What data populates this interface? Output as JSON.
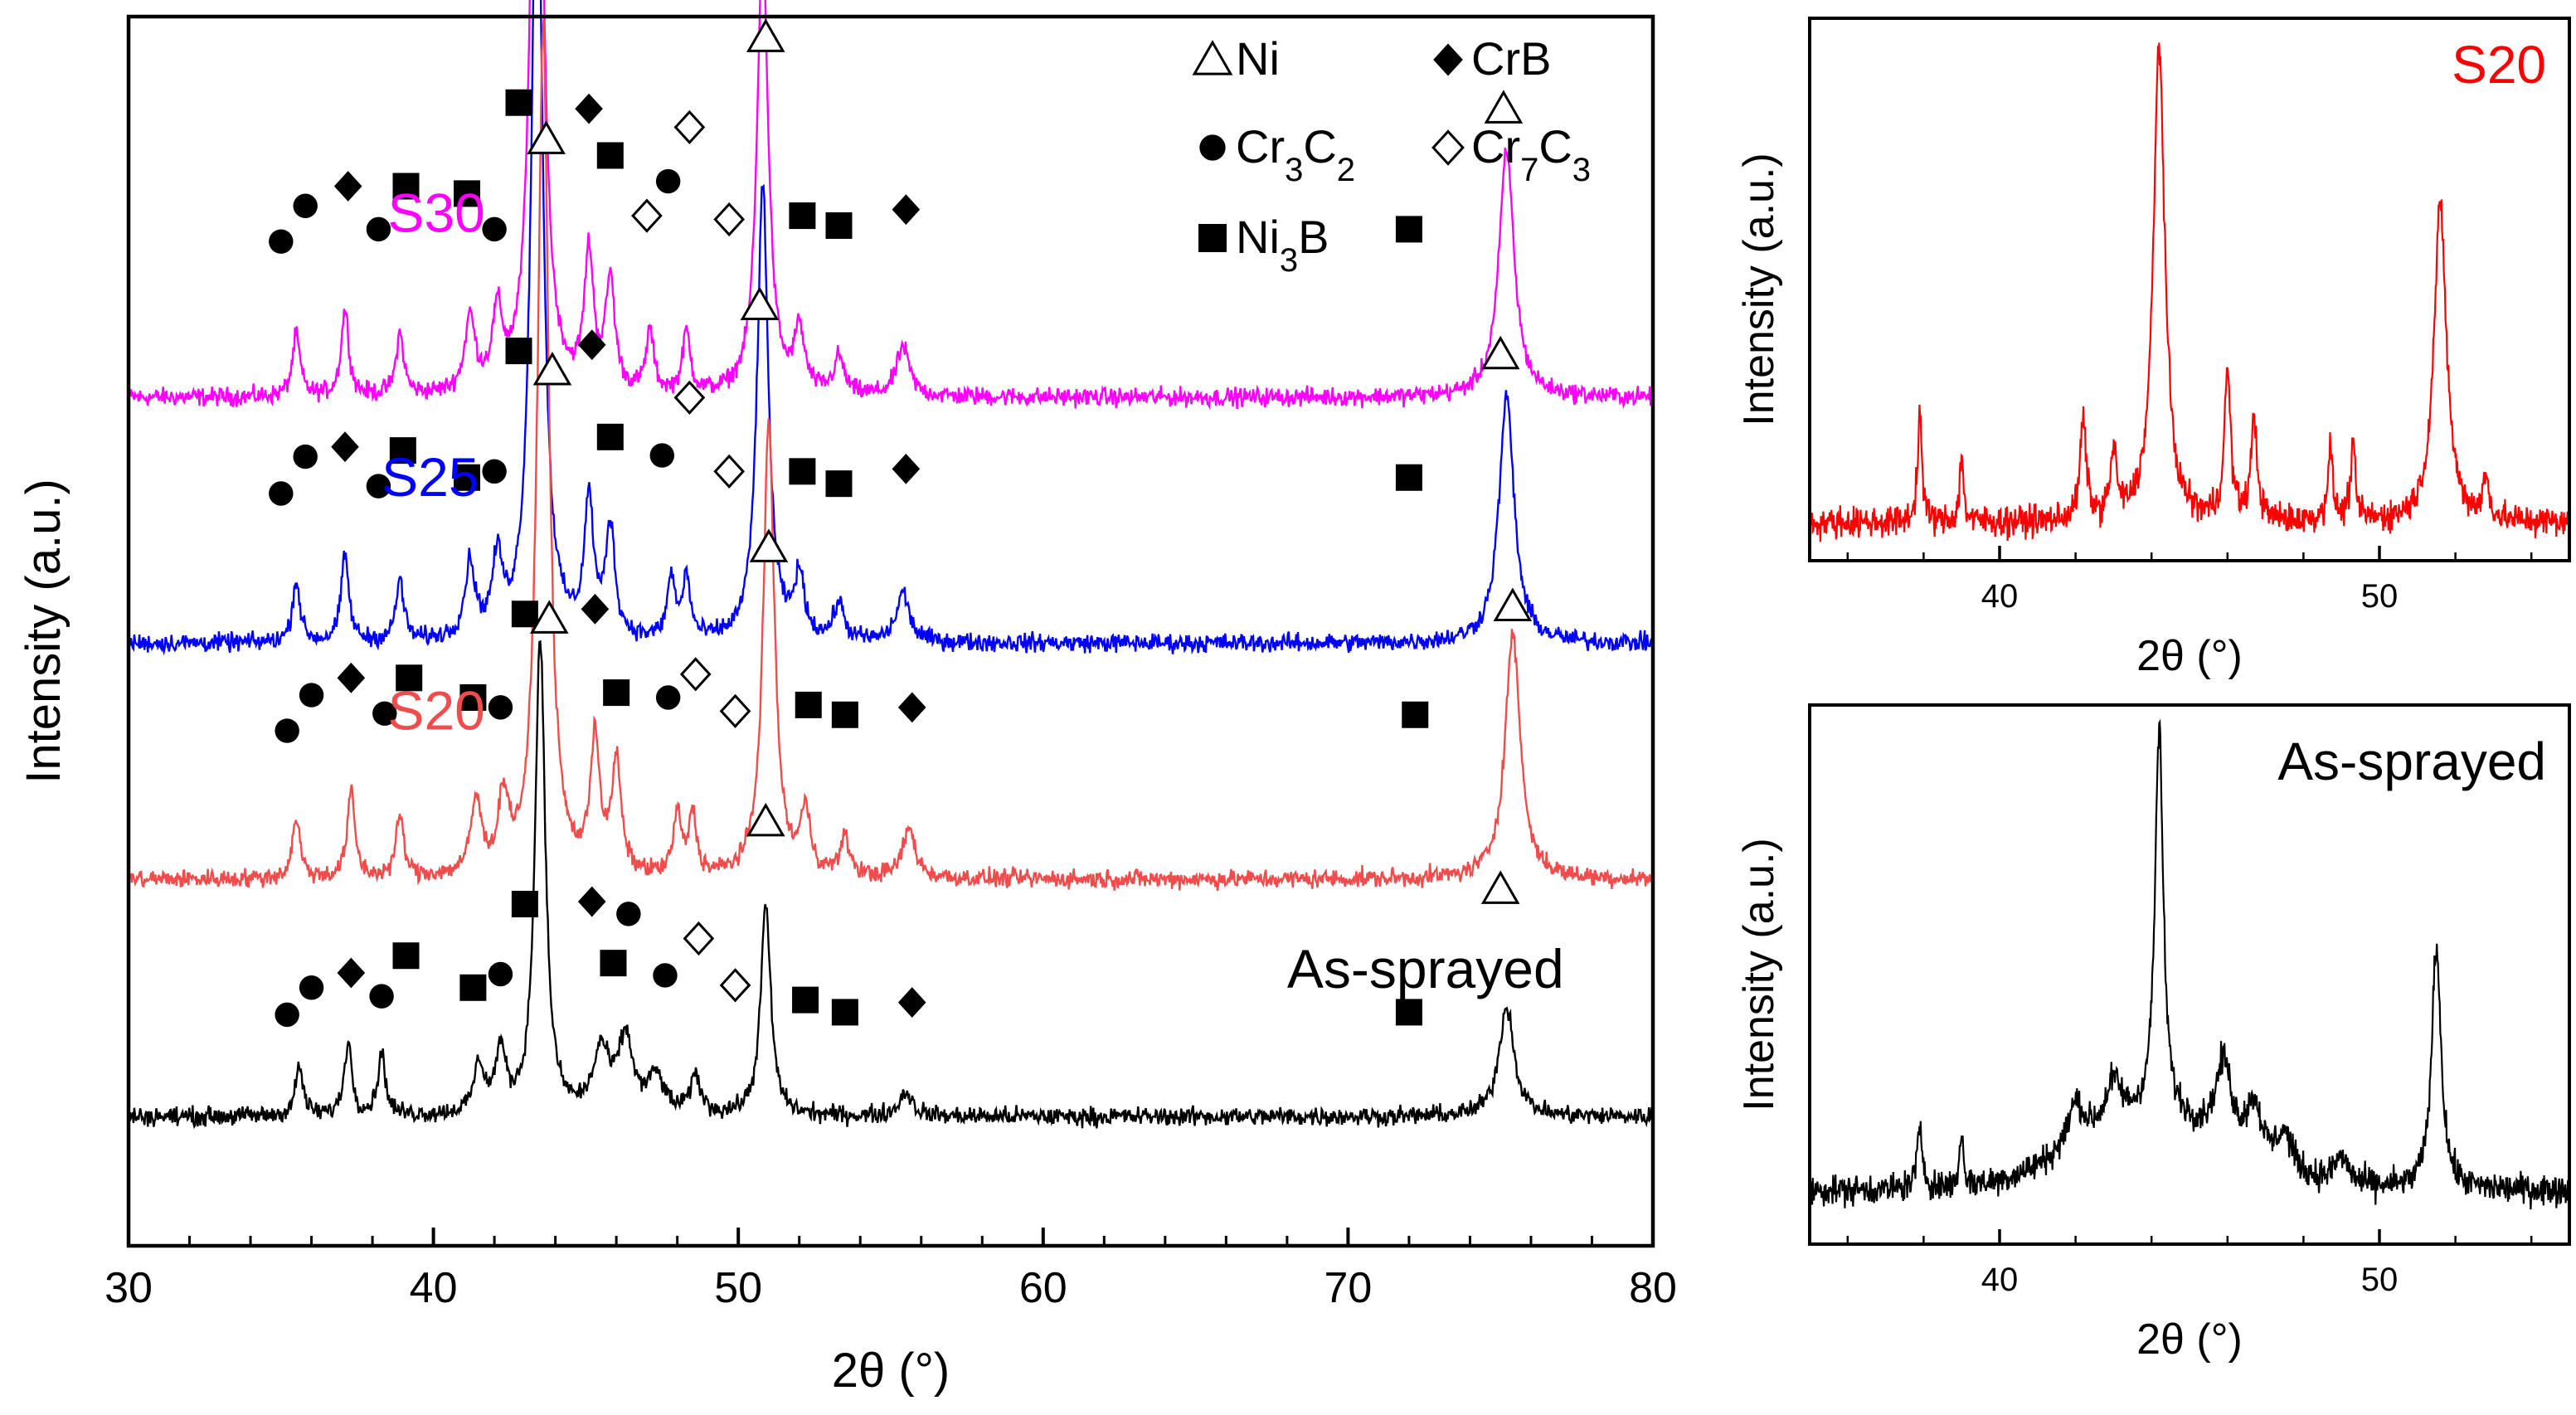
{
  "chart_data": [
    {
      "type": "line",
      "title": "",
      "xlabel": "2θ (°)",
      "ylabel": "Intensity (a.u.)",
      "xlim": [
        30,
        80
      ],
      "xticks": [
        "30",
        "40",
        "50",
        "60",
        "70",
        "80"
      ],
      "grid": false,
      "legend": {
        "position": "top-right",
        "entries": [
          {
            "symbol": "triangle-open",
            "label": "Ni"
          },
          {
            "symbol": "diamond-filled",
            "label": "CrB"
          },
          {
            "symbol": "circle-filled",
            "label": "Cr",
            "sub1": "3",
            "mid": "C",
            "sub2": "2"
          },
          {
            "symbol": "diamond-open",
            "label": "Cr",
            "sub1": "7",
            "mid": "C",
            "sub2": "3"
          },
          {
            "symbol": "square-filled",
            "label": "Ni",
            "sub1": "3",
            "mid": "B",
            "sub2": ""
          }
        ]
      },
      "series": [
        {
          "name": "S30",
          "color": "#ff00ff",
          "baseline": 0.69,
          "label_pos": [
            38.5,
            0.825
          ],
          "peaks": [
            [
              35.5,
              0.05,
              0.15
            ],
            [
              37.1,
              0.07,
              0.15
            ],
            [
              38.9,
              0.05,
              0.15
            ],
            [
              41.2,
              0.06,
              0.2
            ],
            [
              42.1,
              0.06,
              0.2
            ],
            [
              43.4,
              0.69,
              0.22
            ],
            [
              45.1,
              0.11,
              0.18
            ],
            [
              45.8,
              0.09,
              0.18
            ],
            [
              47.1,
              0.05,
              0.15
            ],
            [
              48.3,
              0.05,
              0.15
            ],
            [
              50.8,
              0.37,
              0.22
            ],
            [
              52.0,
              0.05,
              0.2
            ],
            [
              53.3,
              0.03,
              0.2
            ],
            [
              55.4,
              0.04,
              0.25
            ],
            [
              75.2,
              0.2,
              0.3
            ]
          ],
          "markers": [
            {
              "s": "circle-filled",
              "x": 35.0,
              "y": 0.817
            },
            {
              "s": "circle-filled",
              "x": 35.8,
              "y": 0.846
            },
            {
              "s": "diamond-filled",
              "x": 37.2,
              "y": 0.862
            },
            {
              "s": "circle-filled",
              "x": 38.2,
              "y": 0.827
            },
            {
              "s": "square-filled",
              "x": 39.1,
              "y": 0.862
            },
            {
              "s": "square-filled",
              "x": 41.1,
              "y": 0.856
            },
            {
              "s": "circle-filled",
              "x": 42.0,
              "y": 0.827
            },
            {
              "s": "square-filled",
              "x": 42.8,
              "y": 0.93
            },
            {
              "s": "diamond-filled",
              "x": 45.1,
              "y": 0.925
            },
            {
              "s": "square-filled",
              "x": 45.8,
              "y": 0.887
            },
            {
              "s": "diamond-open",
              "x": 47.0,
              "y": 0.838
            },
            {
              "s": "circle-filled",
              "x": 47.7,
              "y": 0.866
            },
            {
              "s": "diamond-open",
              "x": 48.4,
              "y": 0.91
            },
            {
              "s": "diamond-open",
              "x": 49.7,
              "y": 0.835
            },
            {
              "s": "square-filled",
              "x": 52.1,
              "y": 0.838
            },
            {
              "s": "square-filled",
              "x": 53.3,
              "y": 0.83
            },
            {
              "s": "diamond-filled",
              "x": 55.5,
              "y": 0.843
            },
            {
              "s": "square-filled",
              "x": 72.0,
              "y": 0.827
            },
            {
              "s": "triangle-open",
              "x": 43.7,
              "y": 1.112
            },
            {
              "s": "triangle-open",
              "x": 50.9,
              "y": 0.983
            },
            {
              "s": "triangle-open",
              "x": 75.1,
              "y": 0.925
            }
          ]
        },
        {
          "name": "S25",
          "color": "#0000ff",
          "baseline": 0.49,
          "label_pos": [
            38.3,
            0.61
          ],
          "peaks": [
            [
              35.5,
              0.05,
              0.15
            ],
            [
              37.1,
              0.07,
              0.15
            ],
            [
              38.9,
              0.05,
              0.15
            ],
            [
              41.2,
              0.06,
              0.2
            ],
            [
              42.1,
              0.06,
              0.2
            ],
            [
              43.4,
              0.69,
              0.22
            ],
            [
              45.1,
              0.11,
              0.18
            ],
            [
              45.8,
              0.09,
              0.18
            ],
            [
              47.8,
              0.05,
              0.15
            ],
            [
              48.3,
              0.05,
              0.15
            ],
            [
              50.8,
              0.37,
              0.22
            ],
            [
              52.0,
              0.05,
              0.2
            ],
            [
              53.3,
              0.03,
              0.2
            ],
            [
              55.4,
              0.04,
              0.25
            ],
            [
              75.2,
              0.2,
              0.3
            ]
          ],
          "markers": [
            {
              "s": "circle-filled",
              "x": 35.0,
              "y": 0.612
            },
            {
              "s": "circle-filled",
              "x": 35.8,
              "y": 0.642
            },
            {
              "s": "diamond-filled",
              "x": 37.1,
              "y": 0.65
            },
            {
              "s": "circle-filled",
              "x": 38.2,
              "y": 0.618
            },
            {
              "s": "square-filled",
              "x": 39.0,
              "y": 0.647
            },
            {
              "s": "square-filled",
              "x": 41.1,
              "y": 0.625
            },
            {
              "s": "circle-filled",
              "x": 42.0,
              "y": 0.63
            },
            {
              "s": "square-filled",
              "x": 42.8,
              "y": 0.728
            },
            {
              "s": "diamond-filled",
              "x": 45.2,
              "y": 0.733
            },
            {
              "s": "square-filled",
              "x": 45.8,
              "y": 0.658
            },
            {
              "s": "circle-filled",
              "x": 47.5,
              "y": 0.643
            },
            {
              "s": "diamond-open",
              "x": 48.4,
              "y": 0.69
            },
            {
              "s": "diamond-open",
              "x": 49.7,
              "y": 0.63
            },
            {
              "s": "square-filled",
              "x": 52.1,
              "y": 0.63
            },
            {
              "s": "square-filled",
              "x": 53.3,
              "y": 0.62
            },
            {
              "s": "diamond-filled",
              "x": 55.5,
              "y": 0.632
            },
            {
              "s": "square-filled",
              "x": 72.0,
              "y": 0.625
            },
            {
              "s": "triangle-open",
              "x": 43.7,
              "y": 0.9
            },
            {
              "s": "triangle-open",
              "x": 50.7,
              "y": 0.765
            },
            {
              "s": "triangle-open",
              "x": 75.0,
              "y": 0.725
            }
          ]
        },
        {
          "name": "S20",
          "color": "#f04c4c",
          "baseline": 0.298,
          "label_pos": [
            38.5,
            0.42
          ],
          "peaks": [
            [
              35.5,
              0.05,
              0.15
            ],
            [
              37.3,
              0.07,
              0.15
            ],
            [
              38.9,
              0.05,
              0.15
            ],
            [
              41.4,
              0.06,
              0.2
            ],
            [
              42.3,
              0.06,
              0.2
            ],
            [
              43.6,
              0.69,
              0.22
            ],
            [
              45.3,
              0.11,
              0.18
            ],
            [
              46.0,
              0.09,
              0.18
            ],
            [
              48.0,
              0.05,
              0.15
            ],
            [
              48.5,
              0.05,
              0.15
            ],
            [
              51.0,
              0.37,
              0.22
            ],
            [
              52.2,
              0.05,
              0.2
            ],
            [
              53.5,
              0.03,
              0.2
            ],
            [
              55.6,
              0.04,
              0.25
            ],
            [
              75.4,
              0.2,
              0.3
            ]
          ],
          "markers": [
            {
              "s": "circle-filled",
              "x": 35.2,
              "y": 0.419
            },
            {
              "s": "circle-filled",
              "x": 36.0,
              "y": 0.448
            },
            {
              "s": "diamond-filled",
              "x": 37.3,
              "y": 0.462
            },
            {
              "s": "circle-filled",
              "x": 38.4,
              "y": 0.433
            },
            {
              "s": "square-filled",
              "x": 39.2,
              "y": 0.462
            },
            {
              "s": "square-filled",
              "x": 41.3,
              "y": 0.446
            },
            {
              "s": "circle-filled",
              "x": 42.2,
              "y": 0.438
            },
            {
              "s": "square-filled",
              "x": 43.0,
              "y": 0.514
            },
            {
              "s": "diamond-filled",
              "x": 45.3,
              "y": 0.518
            },
            {
              "s": "square-filled",
              "x": 46.0,
              "y": 0.45
            },
            {
              "s": "circle-filled",
              "x": 47.7,
              "y": 0.446
            },
            {
              "s": "diamond-open",
              "x": 48.6,
              "y": 0.465
            },
            {
              "s": "diamond-open",
              "x": 49.9,
              "y": 0.435
            },
            {
              "s": "square-filled",
              "x": 52.3,
              "y": 0.44
            },
            {
              "s": "square-filled",
              "x": 53.5,
              "y": 0.432
            },
            {
              "s": "diamond-filled",
              "x": 55.7,
              "y": 0.438
            },
            {
              "s": "square-filled",
              "x": 72.2,
              "y": 0.432
            },
            {
              "s": "triangle-open",
              "x": 43.9,
              "y": 0.712
            },
            {
              "s": "triangle-open",
              "x": 51.0,
              "y": 0.568
            },
            {
              "s": "triangle-open",
              "x": 75.4,
              "y": 0.52
            }
          ]
        },
        {
          "name": "As-sprayed",
          "color": "#000000",
          "baseline": 0.105,
          "label_pos": [
            68.0,
            0.21
          ],
          "peaks": [
            [
              35.6,
              0.04,
              0.15
            ],
            [
              37.2,
              0.06,
              0.15
            ],
            [
              38.3,
              0.05,
              0.15
            ],
            [
              41.5,
              0.04,
              0.2
            ],
            [
              42.2,
              0.05,
              0.2
            ],
            [
              43.5,
              0.39,
              0.2
            ],
            [
              45.5,
              0.05,
              0.3
            ],
            [
              46.3,
              0.06,
              0.3
            ],
            [
              47.3,
              0.03,
              0.3
            ],
            [
              48.6,
              0.03,
              0.2
            ],
            [
              50.9,
              0.17,
              0.2
            ],
            [
              55.5,
              0.02,
              0.25
            ],
            [
              75.2,
              0.09,
              0.3
            ]
          ],
          "markers": [
            {
              "s": "circle-filled",
              "x": 35.2,
              "y": 0.188
            },
            {
              "s": "circle-filled",
              "x": 36.0,
              "y": 0.21
            },
            {
              "s": "diamond-filled",
              "x": 37.3,
              "y": 0.222
            },
            {
              "s": "circle-filled",
              "x": 38.3,
              "y": 0.203
            },
            {
              "s": "square-filled",
              "x": 39.1,
              "y": 0.236
            },
            {
              "s": "square-filled",
              "x": 41.3,
              "y": 0.21
            },
            {
              "s": "circle-filled",
              "x": 42.2,
              "y": 0.221
            },
            {
              "s": "square-filled",
              "x": 43.0,
              "y": 0.278
            },
            {
              "s": "diamond-filled",
              "x": 45.2,
              "y": 0.28
            },
            {
              "s": "circle-filled",
              "x": 46.4,
              "y": 0.27
            },
            {
              "s": "square-filled",
              "x": 45.9,
              "y": 0.23
            },
            {
              "s": "circle-filled",
              "x": 47.6,
              "y": 0.22
            },
            {
              "s": "diamond-open",
              "x": 48.7,
              "y": 0.25
            },
            {
              "s": "diamond-open",
              "x": 49.9,
              "y": 0.212
            },
            {
              "s": "square-filled",
              "x": 52.2,
              "y": 0.2
            },
            {
              "s": "square-filled",
              "x": 53.5,
              "y": 0.19
            },
            {
              "s": "diamond-filled",
              "x": 55.7,
              "y": 0.198
            },
            {
              "s": "square-filled",
              "x": 72.0,
              "y": 0.19
            },
            {
              "s": "triangle-open",
              "x": 43.8,
              "y": 0.51
            },
            {
              "s": "triangle-open",
              "x": 50.9,
              "y": 0.345
            },
            {
              "s": "triangle-open",
              "x": 75.0,
              "y": 0.29
            }
          ]
        }
      ]
    },
    {
      "type": "line",
      "title": "",
      "label": "S20",
      "color": "#ff0000",
      "xlabel": "2θ (°)",
      "ylabel": "Intensity (a.u.)",
      "xlim": [
        35,
        55
      ],
      "xticks": [
        "40",
        "50"
      ],
      "baseline": 0.07,
      "peaks": [
        [
          37.9,
          0.2,
          0.07
        ],
        [
          39.0,
          0.12,
          0.06
        ],
        [
          42.2,
          0.18,
          0.1
        ],
        [
          43.0,
          0.12,
          0.1
        ],
        [
          44.2,
          0.88,
          0.18
        ],
        [
          46.0,
          0.27,
          0.1
        ],
        [
          46.7,
          0.18,
          0.1
        ],
        [
          48.7,
          0.13,
          0.08
        ],
        [
          49.3,
          0.13,
          0.08
        ],
        [
          51.6,
          0.58,
          0.2
        ],
        [
          52.8,
          0.07,
          0.1
        ]
      ]
    },
    {
      "type": "line",
      "title": "",
      "label": "As-sprayed",
      "color": "#000000",
      "xlabel": "2θ (°)",
      "ylabel": "Intensity (a.u.)",
      "xlim": [
        35,
        55
      ],
      "xticks": [
        "40",
        "50"
      ],
      "baseline": 0.1,
      "peaks": [
        [
          37.9,
          0.1,
          0.1
        ],
        [
          39.0,
          0.1,
          0.06
        ],
        [
          42.0,
          0.08,
          0.25
        ],
        [
          43.0,
          0.08,
          0.25
        ],
        [
          44.2,
          0.72,
          0.13
        ],
        [
          45.9,
          0.15,
          0.25
        ],
        [
          46.7,
          0.1,
          0.25
        ],
        [
          47.5,
          0.07,
          0.25
        ],
        [
          49.0,
          0.05,
          0.25
        ],
        [
          51.5,
          0.45,
          0.15
        ]
      ],
      "hump": [
        44.0,
        0.13,
        2.8
      ]
    }
  ]
}
